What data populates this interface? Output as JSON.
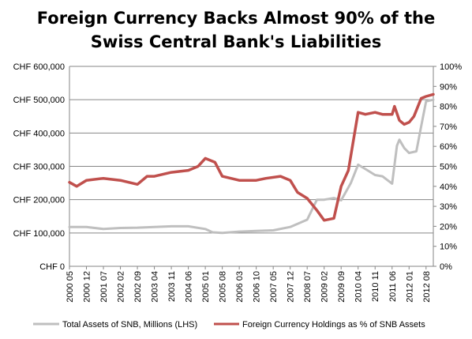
{
  "chart_data": {
    "type": "line",
    "title_lines": [
      "Foreign Currency Backs Almost 90% of the",
      "Swiss Central Bank's Liabilities"
    ],
    "y_left": {
      "ticks": [
        "CHF 0",
        "CHF 100,000",
        "CHF 200,000",
        "CHF 300,000",
        "CHF 400,000",
        "CHF 500,000",
        "CHF 600,000"
      ],
      "range": [
        0,
        600000
      ]
    },
    "y_right": {
      "ticks": [
        "0%",
        "10%",
        "20%",
        "30%",
        "40%",
        "50%",
        "60%",
        "70%",
        "80%",
        "90%",
        "100%"
      ],
      "range": [
        0,
        100
      ]
    },
    "x_range": [
      "2000 05",
      "2012 11"
    ],
    "x_ticks": [
      "2000 05",
      "2000 12",
      "2001 07",
      "2002 02",
      "2002 09",
      "2003 04",
      "2003 11",
      "2004 06",
      "2005 01",
      "2005 08",
      "2006 03",
      "2006 10",
      "2007 05",
      "2007 12",
      "2008 07",
      "2009 02",
      "2009 09",
      "2010 04",
      "2010 11",
      "2011 06",
      "2012 01",
      "2012 08"
    ],
    "grid": "horizontal",
    "legend_position": "bottom",
    "series": [
      {
        "name": "Total Assets of SNB, Millions (LHS)",
        "axis": "left",
        "color": "#bfbfbf",
        "points": [
          [
            "2000 05",
            118000
          ],
          [
            "2000 12",
            118000
          ],
          [
            "2001 07",
            112000
          ],
          [
            "2002 02",
            115000
          ],
          [
            "2002 09",
            116000
          ],
          [
            "2003 04",
            118000
          ],
          [
            "2003 11",
            120000
          ],
          [
            "2004 06",
            120000
          ],
          [
            "2005 01",
            112000
          ],
          [
            "2005 04",
            102000
          ],
          [
            "2005 08",
            100000
          ],
          [
            "2006 03",
            104000
          ],
          [
            "2006 10",
            106000
          ],
          [
            "2007 05",
            108000
          ],
          [
            "2007 12",
            118000
          ],
          [
            "2008 07",
            140000
          ],
          [
            "2008 11",
            200000
          ],
          [
            "2009 02",
            200000
          ],
          [
            "2009 06",
            205000
          ],
          [
            "2009 09",
            198000
          ],
          [
            "2010 01",
            250000
          ],
          [
            "2010 04",
            305000
          ],
          [
            "2010 07",
            292000
          ],
          [
            "2010 11",
            274000
          ],
          [
            "2011 02",
            270000
          ],
          [
            "2011 06",
            248000
          ],
          [
            "2011 08",
            362000
          ],
          [
            "2011 09",
            380000
          ],
          [
            "2011 11",
            355000
          ],
          [
            "2012 01",
            340000
          ],
          [
            "2012 04",
            345000
          ],
          [
            "2012 06",
            420000
          ],
          [
            "2012 08",
            495000
          ],
          [
            "2012 11",
            500000
          ]
        ]
      },
      {
        "name": "Foreign Currency Holdings as % of SNB Assets",
        "axis": "right",
        "color": "#c0504d",
        "points": [
          [
            "2000 05",
            42
          ],
          [
            "2000 08",
            40
          ],
          [
            "2000 12",
            43
          ],
          [
            "2001 07",
            44
          ],
          [
            "2002 02",
            43
          ],
          [
            "2002 09",
            41
          ],
          [
            "2003 01",
            45
          ],
          [
            "2003 04",
            45
          ],
          [
            "2003 11",
            47
          ],
          [
            "2004 06",
            48
          ],
          [
            "2004 10",
            50
          ],
          [
            "2005 01",
            54
          ],
          [
            "2005 05",
            52
          ],
          [
            "2005 08",
            45
          ],
          [
            "2006 03",
            43
          ],
          [
            "2006 10",
            43
          ],
          [
            "2007 02",
            44
          ],
          [
            "2007 08",
            45
          ],
          [
            "2007 12",
            43
          ],
          [
            "2008 03",
            37
          ],
          [
            "2008 07",
            34
          ],
          [
            "2008 11",
            28
          ],
          [
            "2009 02",
            23
          ],
          [
            "2009 06",
            24
          ],
          [
            "2009 09",
            40
          ],
          [
            "2009 12",
            48
          ],
          [
            "2010 04",
            77
          ],
          [
            "2010 07",
            76
          ],
          [
            "2010 11",
            77
          ],
          [
            "2011 02",
            76
          ],
          [
            "2011 06",
            76
          ],
          [
            "2011 07",
            80
          ],
          [
            "2011 09",
            73
          ],
          [
            "2011 11",
            71
          ],
          [
            "2012 01",
            72
          ],
          [
            "2012 03",
            75
          ],
          [
            "2012 06",
            84
          ],
          [
            "2012 08",
            85
          ],
          [
            "2012 11",
            86
          ]
        ]
      }
    ]
  }
}
